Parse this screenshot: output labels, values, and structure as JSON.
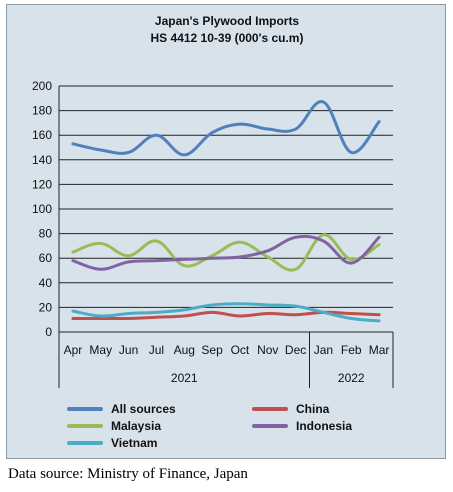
{
  "chart_data": {
    "type": "line",
    "title": "Japan's Plywood Imports",
    "subtitle": "HS 4412 10-39  (000's cu.m)",
    "categories": [
      "Apr",
      "May",
      "Jun",
      "Jul",
      "Aug",
      "Sep",
      "Oct",
      "Nov",
      "Dec",
      "Jan",
      "Feb",
      "Mar"
    ],
    "year_groups": [
      {
        "label": "2021",
        "span": [
          0,
          8
        ]
      },
      {
        "label": "2022",
        "span": [
          9,
          11
        ]
      }
    ],
    "ylim": [
      0,
      200
    ],
    "yticks": [
      0,
      20,
      40,
      60,
      80,
      100,
      120,
      140,
      160,
      180,
      200
    ],
    "grid": true,
    "legend_position": "bottom",
    "series": [
      {
        "name": "All sources",
        "color": "#4f81bd",
        "values": [
          153,
          148,
          146,
          160,
          144,
          162,
          169,
          165,
          165,
          187,
          146,
          171
        ]
      },
      {
        "name": "China",
        "color": "#c0504d",
        "values": [
          11,
          11,
          11,
          12,
          13,
          16,
          13,
          15,
          14,
          16,
          15,
          14
        ]
      },
      {
        "name": "Malaysia",
        "color": "#9bbb59",
        "values": [
          65,
          72,
          62,
          74,
          54,
          62,
          73,
          61,
          51,
          79,
          59,
          71
        ]
      },
      {
        "name": "Indonesia",
        "color": "#8064a2",
        "values": [
          58,
          51,
          57,
          58,
          59,
          60,
          61,
          66,
          77,
          74,
          56,
          77
        ]
      },
      {
        "name": "Vietnam",
        "color": "#4bacc6",
        "values": [
          17,
          13,
          15,
          16,
          18,
          22,
          23,
          22,
          21,
          16,
          11,
          9
        ]
      }
    ]
  },
  "source_text": "Data source: Ministry of Finance, Japan"
}
